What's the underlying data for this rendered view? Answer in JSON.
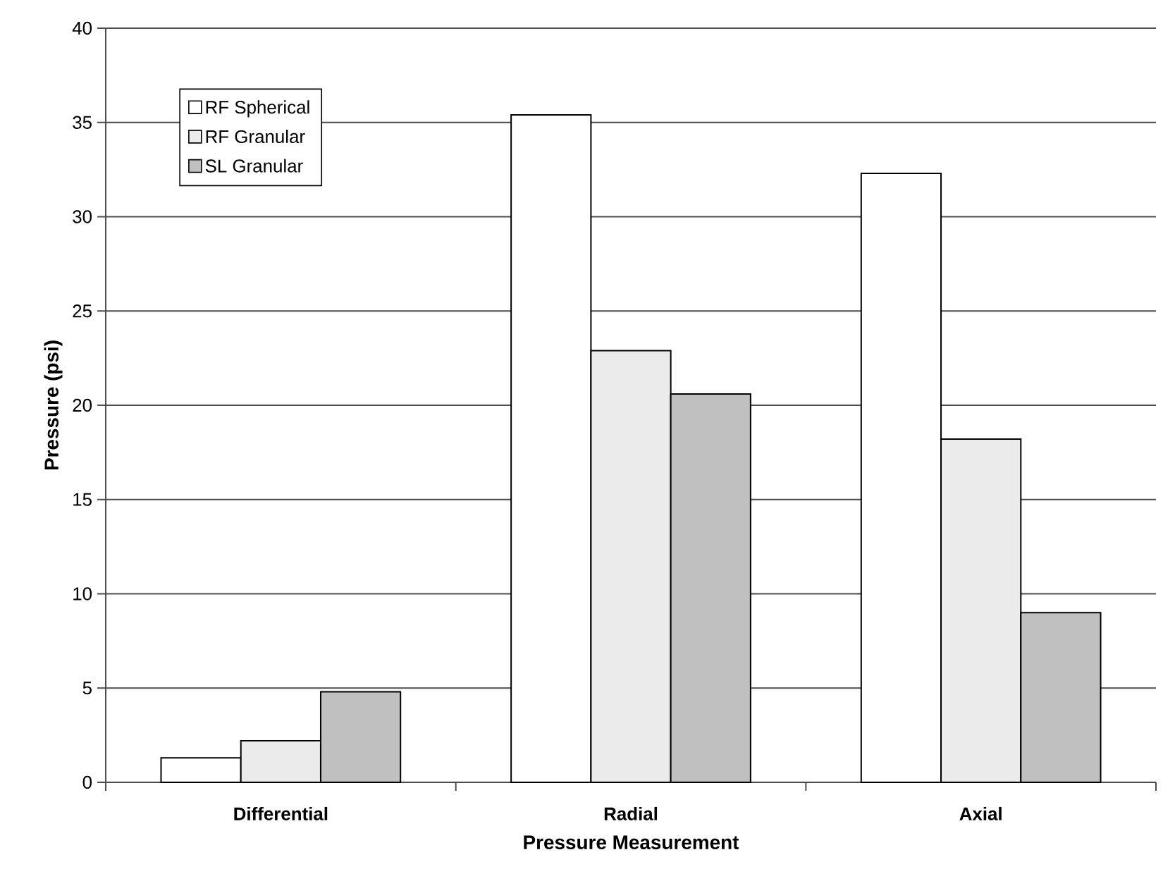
{
  "chart_data": {
    "type": "bar",
    "xlabel": "Pressure Measurement",
    "ylabel": "Pressure (psi)",
    "categories": [
      "Differential",
      "Radial",
      "Axial"
    ],
    "series": [
      {
        "name": "RF Spherical",
        "color": "#ffffff",
        "values": [
          1.3,
          35.4,
          32.3
        ]
      },
      {
        "name": "RF Granular",
        "color": "#ebebeb",
        "values": [
          2.2,
          22.9,
          18.2
        ]
      },
      {
        "name": "SL Granular",
        "color": "#c0c0c0",
        "values": [
          4.8,
          20.6,
          9.0
        ]
      }
    ],
    "ylim": [
      0,
      40
    ],
    "yticks": [
      0,
      5,
      10,
      15,
      20,
      25,
      30,
      35,
      40
    ],
    "grid": "y",
    "legend": "top left"
  }
}
